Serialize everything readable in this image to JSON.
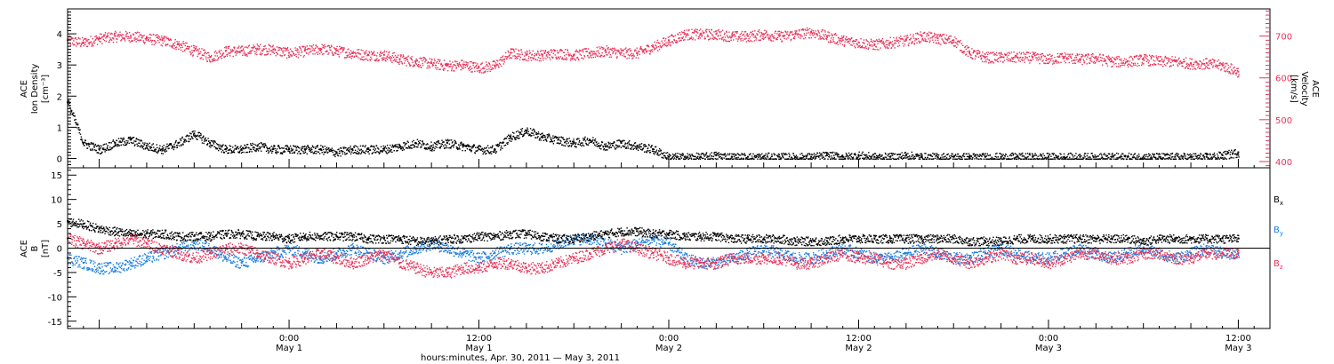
{
  "colors": {
    "axis": "#000000",
    "density": "#000000",
    "velocity": "#e8345a",
    "bx": "#000000",
    "by": "#1a7fe0",
    "bz": "#e8345a"
  },
  "x_axis": {
    "title": "hours:minutes, Apr. 30, 2011 — May  3, 2011",
    "range_hours": [
      -14,
      62
    ],
    "major_ticks": [
      {
        "hour": 0,
        "time": "0:00",
        "date": "May 1"
      },
      {
        "hour": 12,
        "time": "12:00",
        "date": "May 1"
      },
      {
        "hour": 24,
        "time": "0:00",
        "date": "May 2"
      },
      {
        "hour": 36,
        "time": "12:00",
        "date": "May 2"
      },
      {
        "hour": 48,
        "time": "0:00",
        "date": "May 3"
      },
      {
        "hour": 60,
        "time": "12:00",
        "date": "May 3"
      }
    ]
  },
  "chart_data": [
    {
      "type": "scatter",
      "panel": "top",
      "ylabel_left": [
        "ACE",
        "Ion Density",
        "[cm⁻³]"
      ],
      "ylabel_right": [
        "ACE",
        "Velocity",
        "[km/s]"
      ],
      "ylim_left": [
        -0.3,
        4.8
      ],
      "ylim_right": [
        385,
        765
      ],
      "yticks_left": [
        "0",
        "1",
        "2",
        "3",
        "4"
      ],
      "yticks_right": [
        "400",
        "500",
        "600",
        "700"
      ],
      "grid": false,
      "series": [
        {
          "axis": "left",
          "x": [
            -14,
            -13,
            -12,
            -11,
            -10,
            -9,
            -8,
            -7,
            -6,
            -5,
            -4,
            -3,
            -2,
            -1,
            0,
            1,
            2,
            3,
            4,
            5,
            6,
            7,
            8,
            9,
            10,
            11,
            12,
            13,
            14,
            15,
            16,
            17,
            18,
            19,
            20,
            21,
            22,
            23,
            24,
            25,
            26,
            27,
            28,
            29,
            30,
            31,
            32,
            33,
            34,
            35,
            36,
            37,
            38,
            39,
            40,
            41,
            42,
            43,
            44,
            45,
            46,
            47,
            48,
            49,
            50,
            51,
            52,
            53,
            54,
            55,
            56,
            57,
            58,
            59,
            60
          ],
          "y": [
            1.8,
            0.5,
            0.3,
            0.5,
            0.6,
            0.4,
            0.3,
            0.5,
            0.8,
            0.5,
            0.3,
            0.3,
            0.4,
            0.3,
            0.3,
            0.3,
            0.3,
            0.2,
            0.3,
            0.3,
            0.3,
            0.4,
            0.5,
            0.4,
            0.5,
            0.4,
            0.3,
            0.3,
            0.7,
            0.9,
            0.7,
            0.6,
            0.5,
            0.6,
            0.4,
            0.5,
            0.4,
            0.3,
            0.05,
            0.05,
            0.05,
            0.1,
            0.05,
            0.05,
            0.05,
            0.05,
            0.05,
            0.05,
            0.1,
            0.05,
            0.1,
            0.05,
            0.05,
            0.1,
            0.05,
            0.05,
            0.05,
            0.05,
            0.05,
            0.05,
            0.05,
            0.05,
            0.05,
            0.05,
            0.05,
            0.05,
            0.05,
            0.05,
            0.05,
            0.05,
            0.05,
            0.05,
            0.05,
            0.1,
            0.2
          ]
        },
        {
          "axis": "right",
          "x": [
            -14,
            -13,
            -12,
            -11,
            -10,
            -9,
            -8,
            -7,
            -6,
            -5,
            -4,
            -3,
            -2,
            -1,
            0,
            1,
            2,
            3,
            4,
            5,
            6,
            7,
            8,
            9,
            10,
            11,
            12,
            13,
            14,
            15,
            16,
            17,
            18,
            19,
            20,
            21,
            22,
            23,
            24,
            25,
            26,
            27,
            28,
            29,
            30,
            31,
            32,
            33,
            34,
            35,
            36,
            37,
            38,
            39,
            40,
            41,
            42,
            43,
            44,
            45,
            46,
            47,
            48,
            49,
            50,
            51,
            52,
            53,
            54,
            55,
            56,
            57,
            58,
            59,
            60
          ],
          "y": [
            690,
            685,
            695,
            700,
            700,
            695,
            690,
            680,
            665,
            650,
            665,
            665,
            670,
            668,
            660,
            665,
            670,
            665,
            660,
            655,
            655,
            645,
            640,
            635,
            630,
            632,
            625,
            630,
            660,
            655,
            655,
            660,
            655,
            660,
            665,
            660,
            660,
            675,
            690,
            705,
            705,
            705,
            700,
            700,
            705,
            700,
            705,
            710,
            700,
            690,
            685,
            680,
            685,
            690,
            700,
            695,
            690,
            660,
            650,
            650,
            650,
            650,
            645,
            650,
            645,
            648,
            640,
            640,
            645,
            640,
            640,
            635,
            635,
            630,
            615
          ]
        }
      ]
    },
    {
      "type": "scatter",
      "panel": "bottom",
      "ylabel_left": [
        "ACE",
        "B",
        "[nT]"
      ],
      "ylim": [
        -16.5,
        16.5
      ],
      "yticks": [
        "-15",
        "-10",
        "-5",
        "0",
        "5",
        "10",
        "15"
      ],
      "zero_line": true,
      "grid": false,
      "legend_position": "right",
      "series": [
        {
          "name": "B",
          "subscript": "x",
          "x": [
            -14,
            -13,
            -12,
            -11,
            -10,
            -9,
            -8,
            -7,
            -6,
            -5,
            -4,
            -3,
            -2,
            -1,
            0,
            1,
            2,
            3,
            4,
            5,
            6,
            7,
            8,
            9,
            10,
            11,
            12,
            13,
            14,
            15,
            16,
            17,
            18,
            19,
            20,
            21,
            22,
            23,
            24,
            25,
            26,
            27,
            28,
            29,
            30,
            31,
            32,
            33,
            34,
            35,
            36,
            37,
            38,
            39,
            40,
            41,
            42,
            43,
            44,
            45,
            46,
            47,
            48,
            49,
            50,
            51,
            52,
            53,
            54,
            55,
            56,
            57,
            58,
            59,
            60
          ],
          "y": [
            5.5,
            5,
            4,
            3.5,
            3,
            3,
            3,
            2.5,
            2.5,
            2.5,
            3,
            3,
            2.5,
            2.5,
            2,
            2.5,
            2.5,
            2.5,
            2.5,
            2,
            2,
            2,
            1.5,
            1.5,
            2,
            2,
            2.5,
            2.5,
            3,
            3,
            2.5,
            2,
            2,
            2.5,
            3,
            3.5,
            3.5,
            3,
            3,
            2.5,
            2.5,
            2.5,
            2,
            2,
            2,
            2,
            1.5,
            1.5,
            1.5,
            2,
            2,
            2,
            2,
            2,
            2,
            2,
            2,
            1.5,
            1.5,
            1.5,
            2,
            2,
            2,
            2,
            2,
            2,
            2,
            2,
            1.5,
            2,
            2,
            2,
            2,
            2,
            2
          ]
        },
        {
          "name": "B",
          "subscript": "y",
          "x": [
            -14,
            -13,
            -12,
            -11,
            -10,
            -9,
            -8,
            -7,
            -6,
            -5,
            -4,
            -3,
            -2,
            -1,
            0,
            1,
            2,
            3,
            4,
            5,
            6,
            7,
            8,
            9,
            10,
            11,
            12,
            13,
            14,
            15,
            16,
            17,
            18,
            19,
            20,
            21,
            22,
            23,
            24,
            25,
            26,
            27,
            28,
            29,
            30,
            31,
            32,
            33,
            34,
            35,
            36,
            37,
            38,
            39,
            40,
            41,
            42,
            43,
            44,
            45,
            46,
            47,
            48,
            49,
            50,
            51,
            52,
            53,
            54,
            55,
            56,
            57,
            58,
            59,
            60
          ],
          "y": [
            -2,
            -3,
            -4,
            -4,
            -3,
            -2,
            -1,
            0,
            1,
            0,
            -2,
            -3,
            -2,
            -1,
            0,
            -1,
            -2,
            -1,
            0,
            -1,
            -2,
            -1,
            0,
            1,
            0,
            -1,
            -2,
            -1,
            0,
            0,
            0,
            1,
            2,
            2,
            1,
            0,
            1,
            2,
            1,
            -2,
            -3,
            -3,
            -2,
            -1,
            0,
            -1,
            -2,
            -2,
            -1,
            0,
            -1,
            -2,
            -2,
            -1,
            0,
            -1,
            -2,
            -2,
            -1,
            0,
            -1,
            -2,
            -2,
            -1,
            0,
            -1,
            -2,
            -1,
            0,
            -1,
            -2,
            -1,
            0,
            -1,
            -1
          ]
        },
        {
          "name": "B",
          "subscript": "z",
          "x": [
            -14,
            -13,
            -12,
            -11,
            -10,
            -9,
            -8,
            -7,
            -6,
            -5,
            -4,
            -3,
            -2,
            -1,
            0,
            1,
            2,
            3,
            4,
            5,
            6,
            7,
            8,
            9,
            10,
            11,
            12,
            13,
            14,
            15,
            16,
            17,
            18,
            19,
            20,
            21,
            22,
            23,
            24,
            25,
            26,
            27,
            28,
            29,
            30,
            31,
            32,
            33,
            34,
            35,
            36,
            37,
            38,
            39,
            40,
            41,
            42,
            43,
            44,
            45,
            46,
            47,
            48,
            49,
            50,
            51,
            52,
            53,
            54,
            55,
            56,
            57,
            58,
            59,
            60
          ],
          "y": [
            2,
            1,
            0,
            1,
            2,
            1,
            0,
            -1,
            -2,
            -1,
            0,
            0,
            -1,
            -2,
            -3,
            -2,
            -1,
            -2,
            -3,
            -2,
            -1,
            -3,
            -4,
            -5,
            -5,
            -4,
            -4,
            -3,
            -3,
            -4,
            -4,
            -3,
            -2,
            -1,
            0,
            1,
            0,
            -1,
            -2,
            -3,
            -3,
            -3,
            -2,
            -2,
            -2,
            -2,
            -3,
            -3,
            -2,
            -1,
            -2,
            -2,
            -3,
            -3,
            -2,
            -1,
            -2,
            -3,
            -2,
            -1,
            -2,
            -2,
            -3,
            -2,
            -1,
            -1,
            -2,
            -2,
            -1,
            -1,
            -2,
            -2,
            -1,
            -1,
            -1
          ]
        }
      ]
    }
  ]
}
